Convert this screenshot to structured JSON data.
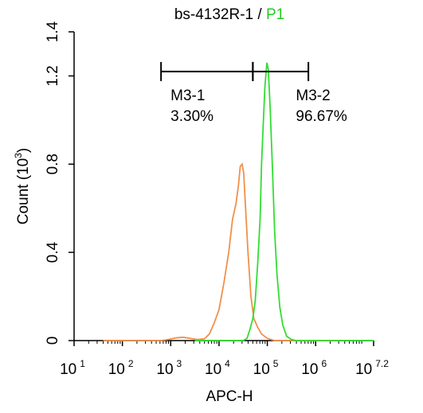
{
  "chart_data": {
    "type": "histogram",
    "title": {
      "sample": "bs-4132R-1",
      "separator": " / ",
      "population": "P1",
      "population_color": "#22cc22"
    },
    "xlabel": "APC-H",
    "ylabel": "Count",
    "ylabel_unit_base": "10",
    "ylabel_unit_exp": "3",
    "x_scale": "log",
    "xlim": [
      1,
      7.2
    ],
    "ylim": [
      0,
      1.4
    ],
    "x_ticks": [
      {
        "value": 1,
        "base": "10",
        "exp": "1"
      },
      {
        "value": 2,
        "base": "10",
        "exp": "2"
      },
      {
        "value": 3,
        "base": "10",
        "exp": "3"
      },
      {
        "value": 4,
        "base": "10",
        "exp": "4"
      },
      {
        "value": 5,
        "base": "10",
        "exp": "5"
      },
      {
        "value": 6,
        "base": "10",
        "exp": "6"
      },
      {
        "value": 7.2,
        "base": "10",
        "exp": "7.2"
      }
    ],
    "y_ticks": [
      {
        "value": 0,
        "label": "0"
      },
      {
        "value": 0.4,
        "label": "0.4"
      },
      {
        "value": 0.8,
        "label": "0.8"
      },
      {
        "value": 1.2,
        "label": "1.2"
      },
      {
        "value": 1.4,
        "label": "1.4"
      }
    ],
    "series": [
      {
        "color": "#f0904a",
        "points": [
          [
            1.6,
            0
          ],
          [
            2.8,
            0
          ],
          [
            2.95,
            0.005
          ],
          [
            3.1,
            0.012
          ],
          [
            3.25,
            0.015
          ],
          [
            3.4,
            0.01
          ],
          [
            3.55,
            0.005
          ],
          [
            3.7,
            0.008
          ],
          [
            3.8,
            0.03
          ],
          [
            3.9,
            0.08
          ],
          [
            4.0,
            0.14
          ],
          [
            4.1,
            0.26
          ],
          [
            4.2,
            0.4
          ],
          [
            4.28,
            0.55
          ],
          [
            4.35,
            0.62
          ],
          [
            4.4,
            0.7
          ],
          [
            4.44,
            0.79
          ],
          [
            4.48,
            0.8
          ],
          [
            4.51,
            0.76
          ],
          [
            4.55,
            0.6
          ],
          [
            4.6,
            0.4
          ],
          [
            4.66,
            0.2
          ],
          [
            4.72,
            0.1
          ],
          [
            4.8,
            0.06
          ],
          [
            4.88,
            0.03
          ],
          [
            5.0,
            0.01
          ],
          [
            5.15,
            0
          ],
          [
            6.5,
            0
          ]
        ]
      },
      {
        "color": "#33dd33",
        "points": [
          [
            3.5,
            0
          ],
          [
            4.5,
            0
          ],
          [
            4.58,
            0.01
          ],
          [
            4.64,
            0.05
          ],
          [
            4.7,
            0.1
          ],
          [
            4.75,
            0.18
          ],
          [
            4.8,
            0.35
          ],
          [
            4.85,
            0.55
          ],
          [
            4.88,
            0.8
          ],
          [
            4.92,
            1.0
          ],
          [
            4.95,
            1.15
          ],
          [
            4.99,
            1.26
          ],
          [
            5.02,
            1.23
          ],
          [
            5.06,
            1.05
          ],
          [
            5.1,
            0.82
          ],
          [
            5.15,
            0.5
          ],
          [
            5.2,
            0.3
          ],
          [
            5.26,
            0.15
          ],
          [
            5.32,
            0.07
          ],
          [
            5.4,
            0.02
          ],
          [
            5.5,
            0.005
          ],
          [
            5.6,
            0
          ],
          [
            7.2,
            0
          ]
        ]
      }
    ],
    "gates": [
      {
        "name": "M3-1",
        "percent": "3.30%",
        "x_start": 2.8,
        "x_end": 4.7,
        "y": 1.22
      },
      {
        "name": "M3-2",
        "percent": "96.67%",
        "x_start": 4.7,
        "x_end": 5.85,
        "y": 1.22
      }
    ]
  }
}
